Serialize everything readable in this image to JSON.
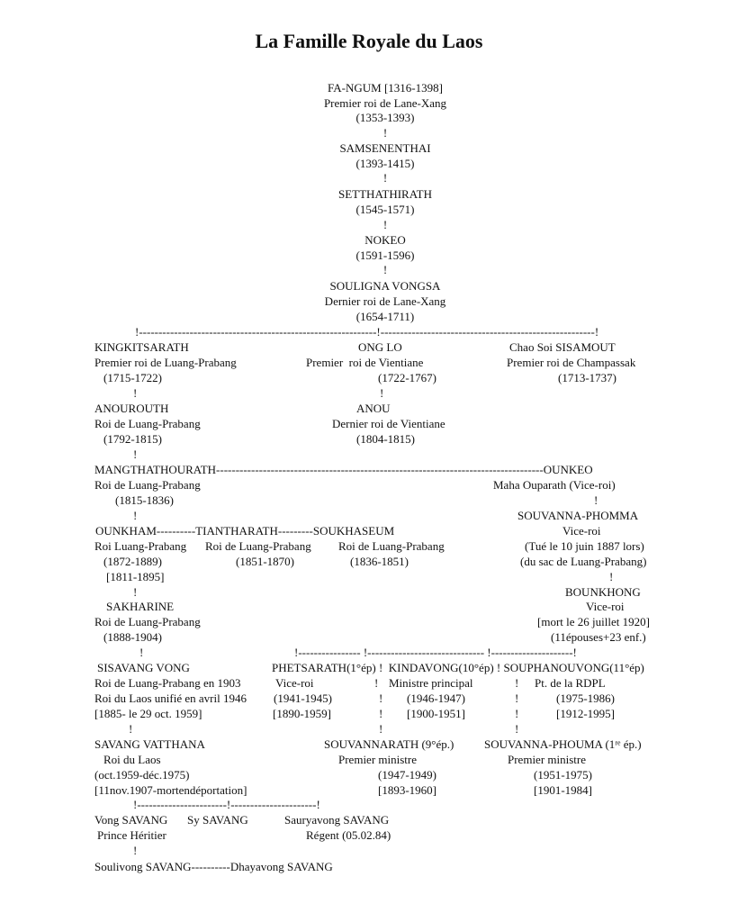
{
  "title": "La Famille Royale du Laos",
  "tree": {
    "items": [
      "FA-NGUM [1316-1398]",
      "Premier roi de Lane-Xang",
      "(1353-1393)",
      "!",
      "SAMSENENTHAI",
      "(1393-1415)",
      "!",
      "SETTHATHIRATH",
      "(1545-1571)",
      "!",
      "NOKEO",
      "(1591-1596)",
      "!",
      "SOULIGNA VONGSA",
      "Dernier roi de Lane-Xang",
      "(1654-1711)",
      "!-------------------------------------------------------------!-------------------------------------------------------!",
      "KINGKITSARATH",
      "ONG LO",
      "Chao Soi SISAMOUT",
      "Premier roi de Luang-Prabang",
      "Premier  roi de Vientiane",
      "Premier roi de Champassak",
      "(1715-1722)",
      "(1722-1767)",
      "(1713-1737)",
      "!",
      "!",
      "ANOUROUTH",
      "ANOU",
      "Roi de Luang-Prabang",
      "Dernier roi de Vientiane",
      "(1792-1815)",
      "(1804-1815)",
      "!",
      "MANGTHATHOURATH------------------------------------------------------------------------------------OUNKEO",
      "Roi de Luang-Prabang",
      "Maha Ouparath (Vice-roi)",
      "(1815-1836)",
      "!",
      "!",
      "SOUVANNA-PHOMMA",
      "OUNKHAM----------TIANTHARATH---------SOUKHASEUM",
      "Vice-roi",
      "Roi Luang-Prabang",
      "Roi de Luang-Prabang",
      "Roi de Luang-Prabang",
      "(Tué le 10 juin 1887 lors)",
      "(1872-1889)",
      "(1851-1870)",
      "(1836-1851)",
      "(du sac de Luang-Prabang)",
      "[1811-1895]",
      "!",
      "!",
      "BOUNKHONG",
      "SAKHARINE",
      "Vice-roi",
      "Roi de Luang-Prabang",
      "[mort le 26 juillet 1920]",
      "(1888-1904)",
      "(11épouses+23 enf.)",
      "!",
      "!---------------- !------------------------------ !---------------------!",
      "SISAVANG VONG",
      "PHETSARATH(1°ép) !  KINDAVONG(10°ép) ! SOUPHANOUVONG(11°ép)",
      "Roi de Luang-Prabang en 1903",
      "Vice-roi",
      "!",
      "Ministre principal",
      "!",
      "Pt. de la RDPL",
      "Roi du Laos unifié en avril 1946",
      "(1941-1945)",
      "!",
      "(1946-1947)",
      "!",
      "(1975-1986)",
      "[1885- le 29 oct. 1959]",
      "[1890-1959]",
      "!",
      "[1900-1951]",
      "!",
      "[1912-1995]",
      "!",
      "!",
      "!",
      "SAVANG VATTHANA",
      "SOUVANNARATH (9°ép.)",
      "SOUVANNA-PHOUMA (1ʳᵉ ép.)",
      "Roi du Laos",
      "Premier ministre",
      "Premier ministre",
      "(oct.1959-déc.1975)",
      "(1947-1949)",
      "(1951-1975)",
      "[11nov.1907-mortendéportation]",
      "[1893-1960]",
      "[1901-1984]",
      "!-----------------------!----------------------!",
      "Vong SAVANG",
      "Sy SAVANG",
      "Sauryavong SAVANG",
      "Prince Héritier",
      "Régent (05.02.84)",
      "!",
      "Soulivong SAVANG----------Dhayavong SAVANG"
    ]
  }
}
